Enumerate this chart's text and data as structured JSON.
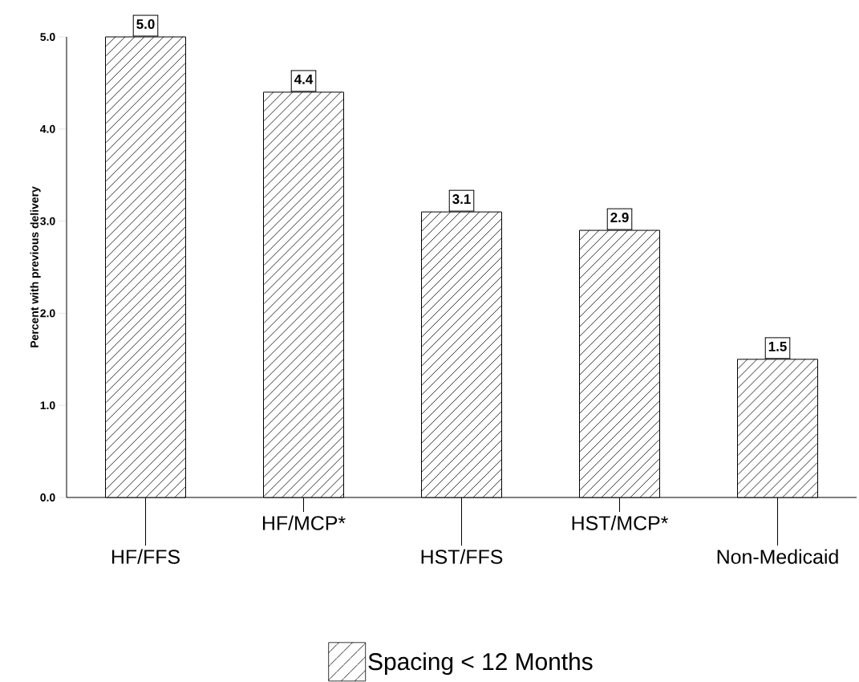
{
  "chart_data": {
    "type": "bar",
    "ylabel": "Percent with previous delivery",
    "categories": [
      "HF/FFS",
      "HF/MCP*",
      "HST/FFS",
      "HST/MCP*",
      "Non-Medicaid"
    ],
    "series": [
      {
        "name": "Spacing < 12 Months",
        "color": "#000000",
        "values": [
          5.0,
          4.4,
          3.1,
          2.9,
          1.5
        ],
        "value_labels": [
          "5.0",
          "4.4",
          "3.1",
          "2.9",
          "1.5"
        ]
      }
    ],
    "ylim": [
      0,
      5
    ],
    "yticks": [
      {
        "value": 0,
        "label": "0.0"
      },
      {
        "value": 1,
        "label": "1.0"
      },
      {
        "value": 2,
        "label": "2.0"
      },
      {
        "value": 3,
        "label": "3.0"
      },
      {
        "value": 4,
        "label": "4.0"
      },
      {
        "value": 5,
        "label": "5.0"
      }
    ],
    "legend": "bottom",
    "grid": false
  }
}
